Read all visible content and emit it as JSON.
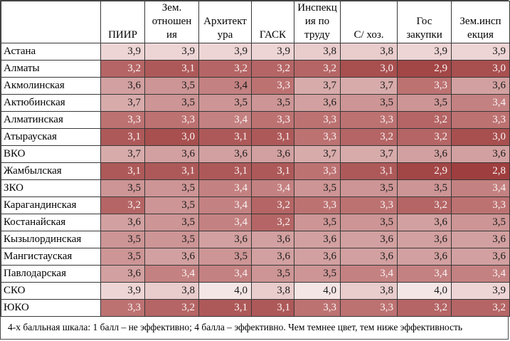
{
  "table": {
    "corner_label": "",
    "columns": [
      "ПИИР",
      "Зем.\nотношен\nия",
      "Архитект\nура",
      "ГАСК",
      "Инспекц\nия по\nтруду",
      "С/ хоз.",
      "Гос\nзакупки",
      "Зем.инсп\nекция"
    ],
    "rows": [
      {
        "region": "Астана",
        "values": [
          "3,9",
          "3,9",
          "3,9",
          "3,9",
          "3,8",
          "3,8",
          "3,9",
          "3,9"
        ],
        "text_colors": "bbbbbbbb"
      },
      {
        "region": "Алматы",
        "values": [
          "3,2",
          "3,1",
          "3,2",
          "3,2",
          "3,2",
          "3,0",
          "2,9",
          "3,0"
        ],
        "text_colors": "wwwwwwww"
      },
      {
        "region": "Акмолинская",
        "values": [
          "3,6",
          "3,5",
          "3,4",
          "3,3",
          "3,7",
          "3,7",
          "3,3",
          "3,6"
        ],
        "text_colors": "bbbwbbwb"
      },
      {
        "region": "Актюбинская",
        "values": [
          "3,7",
          "3,5",
          "3,5",
          "3,5",
          "3,6",
          "3,5",
          "3,5",
          "3,4"
        ],
        "text_colors": "bbbbbbbw"
      },
      {
        "region": "Алматинская",
        "values": [
          "3,3",
          "3,3",
          "3,4",
          "3,3",
          "3,3",
          "3,3",
          "3,2",
          "3,3"
        ],
        "text_colors": "wwwwwwww"
      },
      {
        "region": "Атырауская",
        "values": [
          "3,1",
          "3,0",
          "3,1",
          "3,1",
          "3,3",
          "3,2",
          "3,2",
          "3,0"
        ],
        "text_colors": "wwwwwwww"
      },
      {
        "region": "ВКО",
        "values": [
          "3,7",
          "3,6",
          "3,6",
          "3,6",
          "3,7",
          "3,7",
          "3,6",
          "3,6"
        ],
        "text_colors": "bbbbbbbb"
      },
      {
        "region": "Жамбылская",
        "values": [
          "3,1",
          "3,1",
          "3,1",
          "3,1",
          "3,3",
          "3,1",
          "2,9",
          "2,8"
        ],
        "text_colors": "wwwwwwww"
      },
      {
        "region": "ЗКО",
        "values": [
          "3,5",
          "3,5",
          "3,4",
          "3,4",
          "3,5",
          "3,5",
          "3,5",
          "3,4"
        ],
        "text_colors": "bbwwbbbw"
      },
      {
        "region": "Карагандинская",
        "values": [
          "3,2",
          "3,5",
          "3,4",
          "3,2",
          "3,3",
          "3,3",
          "3,2",
          "3,3"
        ],
        "text_colors": "wbwwwwww"
      },
      {
        "region": "Костанайская",
        "values": [
          "3,6",
          "3,5",
          "3,4",
          "3,2",
          "3,5",
          "3,5",
          "3,6",
          "3,5"
        ],
        "text_colors": "bbwwbbbb"
      },
      {
        "region": "Кызылординская",
        "values": [
          "3,5",
          "3,5",
          "3,6",
          "3,6",
          "3,6",
          "3,6",
          "3,6",
          "3,6"
        ],
        "text_colors": "bbbbbbbb"
      },
      {
        "region": "Мангистауская",
        "values": [
          "3,5",
          "3,6",
          "3,5",
          "3,6",
          "3,6",
          "3,6",
          "3,6",
          "3,6"
        ],
        "text_colors": "bbbbbbbb"
      },
      {
        "region": "Павлодарская",
        "values": [
          "3,6",
          "3,4",
          "3,4",
          "3,5",
          "3,5",
          "3,4",
          "3,4",
          "3,4"
        ],
        "text_colors": "bwwbbwww"
      },
      {
        "region": "СКО",
        "values": [
          "3,9",
          "3,8",
          "4,0",
          "3,8",
          "4,0",
          "3,8",
          "4,0",
          "3,9"
        ],
        "text_colors": "bbbbbbbb"
      },
      {
        "region": "ЮКО",
        "values": [
          "3,3",
          "3,2",
          "3,1",
          "3,1",
          "3,3",
          "3,3",
          "3,2",
          "3,2"
        ],
        "text_colors": "wwwwwwww"
      }
    ]
  },
  "palette": {
    "2,8": "#9f3e3e",
    "2,9": "#a34646",
    "3,0": "#a84f4f",
    "3,1": "#ae5959",
    "3,2": "#b56565",
    "3,3": "#bd7272",
    "3,4": "#c48181",
    "3,5": "#cd9595",
    "3,6": "#d2a0a0",
    "3,7": "#d8abab",
    "3,8": "#e9cccc",
    "3,9": "#eed5d5",
    "4,0": "#f5e6e6"
  },
  "value_text_colors": {
    "black": "#1a1a1a",
    "white": "#fbf3f3"
  },
  "footnote": "4-х балльная шкала: 1 балл – не эффективно;  4 балла – эффективно. Чем темнее цвет, тем ниже эффективность"
}
